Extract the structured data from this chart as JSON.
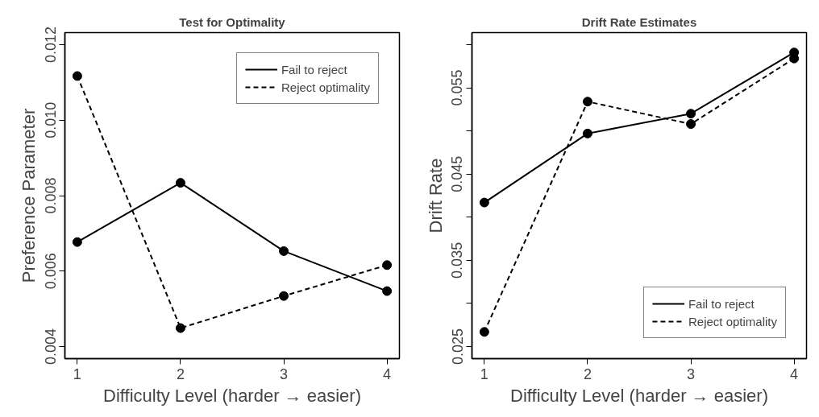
{
  "chart_data": [
    {
      "type": "line",
      "title": "Test for Optimality",
      "xlabel": "Difficulty Level (harder → easier)",
      "ylabel": "Preference Parameter",
      "x": [
        1,
        2,
        3,
        4
      ],
      "xlim": [
        0.88,
        4.12
      ],
      "xticks": [
        1,
        2,
        3,
        4
      ],
      "ylim": [
        0.00368,
        0.01232
      ],
      "yticks": [
        0.004,
        0.006,
        0.008,
        {
          "value": 0.01,
          "label": "0.010"
        },
        0.012
      ],
      "marker": "circle",
      "grid": false,
      "legend": "top right",
      "series": [
        {
          "name": "Fail to reject",
          "color": "#000000",
          "line_style": "solid",
          "values": [
            0.00677,
            0.00834,
            0.00653,
            0.00547
          ]
        },
        {
          "name": "Reject optimality",
          "color": "#000000",
          "line_style": "dashed",
          "values": [
            0.01117,
            0.00449,
            0.00534,
            0.00616
          ]
        }
      ]
    },
    {
      "type": "line",
      "title": "Drift Rate Estimates",
      "xlabel": "Difficulty Level (harder → easier)",
      "ylabel": "Drift Rate",
      "x": [
        1,
        2,
        3,
        4
      ],
      "xlim": [
        0.88,
        4.12
      ],
      "xticks": [
        1,
        2,
        3,
        4
      ],
      "ylim": [
        0.0236,
        0.0614
      ],
      "yticks": [
        0.025,
        {
          "value": 0.03,
          "label": null
        },
        0.035,
        {
          "value": 0.04,
          "label": null
        },
        0.045,
        {
          "value": 0.05,
          "label": null
        },
        0.055,
        {
          "value": 0.06,
          "label": null
        }
      ],
      "marker": "circle",
      "grid": false,
      "legend": "bottom right",
      "series": [
        {
          "name": "Fail to reject",
          "color": "#000000",
          "line_style": "solid",
          "values": [
            0.0417,
            0.0497,
            0.052,
            0.0591
          ]
        },
        {
          "name": "Reject optimality",
          "color": "#000000",
          "line_style": "dashed",
          "values": [
            0.0267,
            0.0534,
            0.0508,
            0.0584
          ]
        }
      ]
    }
  ]
}
